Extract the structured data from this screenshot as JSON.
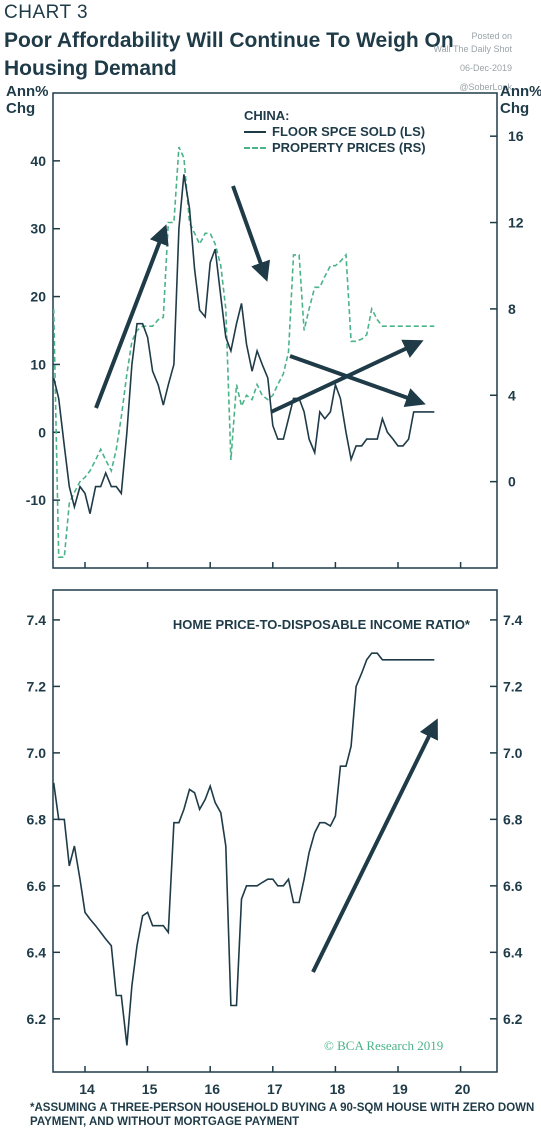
{
  "header": {
    "chart_label": "CHART 3",
    "title": "Poor Affordability Will Continue To Weigh On Housing Demand"
  },
  "watermark": {
    "line1": "Posted on",
    "line2": "Wall The Daily Shot",
    "line3": "06-Dec-2019",
    "line4": "@SoberLook"
  },
  "axis_units": {
    "left": "Ann% Chg",
    "right": "Ann% Chg"
  },
  "credit": "© BCA Research 2019",
  "footnote": "*ASSUMING A THREE-PERSON HOUSEHOLD BUYING A 90-SQM HOUSE WITH ZERO DOWN PAYMENT, AND WITHOUT MORTGAGE PAYMENT",
  "colors": {
    "dark": "#1f3b48",
    "green": "#4bb38a",
    "frame": "#1f3b48"
  },
  "chart_data": [
    {
      "type": "line",
      "legend_title": "CHINA:",
      "legend_position": "top-right",
      "x_ticks": [
        "14",
        "15",
        "16",
        "17",
        "18",
        "19",
        "20"
      ],
      "left_axis": {
        "ticks": [
          -10,
          0,
          10,
          20,
          30,
          40
        ],
        "range": [
          -20,
          50
        ]
      },
      "right_axis": {
        "ticks": [
          0,
          4,
          8,
          12,
          16
        ],
        "range": [
          -4,
          18
        ]
      },
      "series": [
        {
          "name": "FLOOR SPCE SOLD (LS)",
          "axis": "left",
          "style": "solid",
          "x": [
            2013.5,
            2013.58,
            2013.67,
            2013.75,
            2013.83,
            2013.92,
            2014.0,
            2014.08,
            2014.17,
            2014.25,
            2014.33,
            2014.42,
            2014.5,
            2014.58,
            2014.67,
            2014.75,
            2014.83,
            2014.92,
            2015.0,
            2015.08,
            2015.17,
            2015.25,
            2015.33,
            2015.42,
            2015.5,
            2015.58,
            2015.67,
            2015.75,
            2015.83,
            2015.92,
            2016.0,
            2016.08,
            2016.17,
            2016.25,
            2016.33,
            2016.42,
            2016.5,
            2016.58,
            2016.67,
            2016.75,
            2016.83,
            2016.92,
            2017.0,
            2017.08,
            2017.17,
            2017.25,
            2017.33,
            2017.42,
            2017.5,
            2017.58,
            2017.67,
            2017.75,
            2017.83,
            2017.92,
            2018.0,
            2018.08,
            2018.17,
            2018.25,
            2018.33,
            2018.42,
            2018.5,
            2018.58,
            2018.67,
            2018.75,
            2018.83,
            2018.92,
            2019.0,
            2019.08,
            2019.17,
            2019.25,
            2019.33,
            2019.42,
            2019.5,
            2019.58
          ],
          "values": [
            8,
            5,
            -2,
            -8,
            -11,
            -8,
            -9,
            -12,
            -8,
            -8,
            -6,
            -8,
            -8,
            -9,
            0,
            10,
            16,
            16,
            14,
            9,
            7,
            4,
            7,
            10,
            30,
            38,
            33,
            24,
            18,
            17,
            25,
            27,
            20,
            14,
            12,
            16,
            19,
            13,
            9,
            12,
            10,
            8,
            1,
            -1,
            -1,
            2,
            5,
            5,
            3,
            -1,
            -3,
            3,
            2,
            3,
            7,
            5,
            0,
            -4,
            -2,
            -2,
            -1,
            -1,
            -1,
            2,
            0,
            -1,
            -2,
            -2,
            -1,
            3,
            3,
            3,
            3,
            3
          ],
          "values_note": "approximate"
        },
        {
          "name": "PROPERTY PRICES (RS)",
          "axis": "right",
          "style": "dashed",
          "x": [
            2013.5,
            2013.58,
            2013.67,
            2013.75,
            2013.83,
            2013.92,
            2014.0,
            2014.08,
            2014.17,
            2014.25,
            2014.33,
            2014.42,
            2014.5,
            2014.58,
            2014.67,
            2014.75,
            2014.83,
            2014.92,
            2015.0,
            2015.08,
            2015.17,
            2015.25,
            2015.33,
            2015.42,
            2015.5,
            2015.58,
            2015.67,
            2015.75,
            2015.83,
            2015.92,
            2016.0,
            2016.08,
            2016.17,
            2016.25,
            2016.33,
            2016.42,
            2016.5,
            2016.58,
            2016.67,
            2016.75,
            2016.83,
            2016.92,
            2017.0,
            2017.08,
            2017.17,
            2017.25,
            2017.33,
            2017.42,
            2017.5,
            2017.58,
            2017.67,
            2017.75,
            2017.83,
            2017.92,
            2018.0,
            2018.08,
            2018.17,
            2018.25,
            2018.33,
            2018.42,
            2018.5,
            2018.58,
            2018.67,
            2018.75,
            2018.83,
            2018.92,
            2019.0,
            2019.08,
            2019.17,
            2019.25,
            2019.33,
            2019.42,
            2019.5,
            2019.58
          ],
          "values": [
            8,
            -3.5,
            -3.5,
            -1,
            -0.5,
            0,
            0.2,
            0.5,
            1,
            1.5,
            1,
            0.5,
            1.5,
            3,
            5,
            6.5,
            7,
            7.2,
            7.2,
            7.2,
            7.5,
            7.6,
            12,
            12,
            15.5,
            15,
            12,
            11.5,
            11,
            11.5,
            11.5,
            11,
            10,
            8,
            1,
            4.5,
            3.5,
            4,
            3.8,
            4.5,
            4,
            3.8,
            4,
            4.5,
            5,
            6,
            10.5,
            10.5,
            7,
            8,
            9,
            9,
            9.5,
            10,
            10,
            10.2,
            10.5,
            6.5,
            6.5,
            6.6,
            6.8,
            8,
            7.5,
            7.2,
            7.2,
            7.2,
            7.2,
            7.2,
            7.2,
            7.2,
            7.2,
            7.2,
            7.2,
            7.2
          ],
          "values_note": "approximate"
        }
      ]
    },
    {
      "type": "line",
      "title": "HOME PRICE-TO-DISPOSABLE INCOME RATIO*",
      "x_ticks": [
        "14",
        "15",
        "16",
        "17",
        "18",
        "19",
        "20"
      ],
      "y_ticks": [
        6.2,
        6.4,
        6.6,
        6.8,
        7.0,
        7.2,
        7.4
      ],
      "y_range": [
        6.04,
        7.49
      ],
      "series": [
        {
          "axis": "left",
          "style": "solid",
          "x": [
            2013.5,
            2013.58,
            2013.67,
            2013.75,
            2013.83,
            2013.92,
            2014.0,
            2014.08,
            2014.17,
            2014.25,
            2014.33,
            2014.42,
            2014.5,
            2014.58,
            2014.67,
            2014.75,
            2014.83,
            2014.92,
            2015.0,
            2015.08,
            2015.17,
            2015.25,
            2015.33,
            2015.42,
            2015.5,
            2015.58,
            2015.67,
            2015.75,
            2015.83,
            2015.92,
            2016.0,
            2016.08,
            2016.17,
            2016.25,
            2016.33,
            2016.42,
            2016.5,
            2016.58,
            2016.67,
            2016.75,
            2016.83,
            2016.92,
            2017.0,
            2017.08,
            2017.17,
            2017.25,
            2017.33,
            2017.42,
            2017.5,
            2017.58,
            2017.67,
            2017.75,
            2017.83,
            2017.92,
            2018.0,
            2018.08,
            2018.17,
            2018.25,
            2018.33,
            2018.42,
            2018.5,
            2018.58,
            2018.67,
            2018.75,
            2018.83,
            2018.92,
            2019.0,
            2019.08,
            2019.17,
            2019.25,
            2019.33,
            2019.42,
            2019.5,
            2019.58
          ],
          "values": [
            6.91,
            6.8,
            6.8,
            6.66,
            6.72,
            6.62,
            6.52,
            6.5,
            6.48,
            6.46,
            6.44,
            6.42,
            6.27,
            6.27,
            6.12,
            6.3,
            6.42,
            6.51,
            6.52,
            6.48,
            6.48,
            6.48,
            6.46,
            6.79,
            6.79,
            6.83,
            6.89,
            6.88,
            6.83,
            6.86,
            6.9,
            6.85,
            6.82,
            6.72,
            6.24,
            6.24,
            6.56,
            6.6,
            6.6,
            6.6,
            6.61,
            6.62,
            6.62,
            6.6,
            6.6,
            6.62,
            6.55,
            6.55,
            6.62,
            6.7,
            6.76,
            6.79,
            6.79,
            6.78,
            6.81,
            6.96,
            6.96,
            7.02,
            7.2,
            7.24,
            7.28,
            7.3,
            7.3,
            7.28,
            7.28,
            7.28,
            7.28,
            7.28,
            7.28,
            7.28,
            7.28,
            7.28,
            7.28,
            7.28
          ],
          "values_note": "approximate"
        }
      ]
    }
  ]
}
